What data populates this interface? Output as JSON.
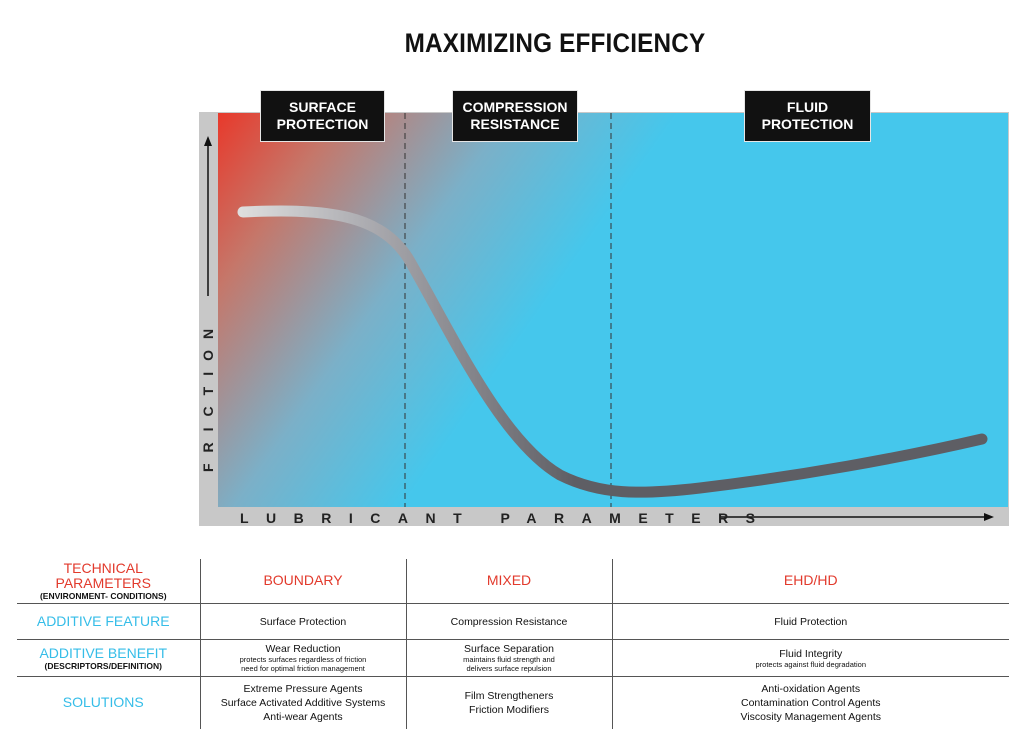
{
  "title": "MAXIMIZING EFFICIENCY",
  "regions": [
    {
      "line1": "SURFACE",
      "line2": "PROTECTION"
    },
    {
      "line1": "COMPRESSION",
      "line2": "RESISTANCE"
    },
    {
      "line1": "FLUID",
      "line2": "PROTECTION"
    }
  ],
  "axes": {
    "y_label": "FRICTION",
    "x_label": "LUBRICANT PARAMETERS"
  },
  "colors": {
    "hot": "#e8392b",
    "cool": "#45c7ec",
    "curve": "#5e5e64",
    "frame": "#c8c8c8",
    "red_text": "#e23a2c",
    "blue_text": "#35bde8"
  },
  "chart_data": {
    "type": "line",
    "regions": [
      "BOUNDARY",
      "MIXED",
      "EHD/HD"
    ],
    "curve": {
      "x": [
        0,
        0.05,
        0.1,
        0.15,
        0.2,
        0.25,
        0.3,
        0.35,
        0.4,
        0.45,
        0.5,
        0.6,
        0.7,
        0.8,
        0.9,
        1.0
      ],
      "y": [
        0.78,
        0.78,
        0.77,
        0.74,
        0.66,
        0.45,
        0.27,
        0.14,
        0.07,
        0.04,
        0.04,
        0.07,
        0.11,
        0.16,
        0.21,
        0.27
      ]
    },
    "boundaries_x": [
      0.22,
      0.48
    ]
  },
  "table": {
    "rows": [
      {
        "head": "TECHNICAL PARAMETERS",
        "sub": "(ENVIRONMENT- CONDITIONS)",
        "cells": [
          "BOUNDARY",
          "MIXED",
          "EHD/HD"
        ]
      },
      {
        "head": "ADDITIVE FEATURE",
        "cells": [
          "Surface Protection",
          "Compression Resistance",
          "Fluid Protection"
        ]
      },
      {
        "head": "ADDITIVE BENEFIT",
        "sub": "(DESCRIPTORS/DEFINITION)",
        "cells": [
          {
            "main": "Wear Reduction",
            "sub1": "protects surfaces regardless of friction",
            "sub2": "need for optimal friction management"
          },
          {
            "main": "Surface Separation",
            "sub1": "maintains fluid strength and",
            "sub2": "delivers surface repulsion"
          },
          {
            "main": "Fluid Integrity",
            "sub1": "protects against fluid degradation",
            "sub2": ""
          }
        ]
      },
      {
        "head": "SOLUTIONS",
        "cells": [
          [
            "Extreme Pressure Agents",
            "Surface Activated Additive Systems",
            "Anti-wear Agents"
          ],
          [
            "Film Strengtheners",
            "Friction Modifiers"
          ],
          [
            "Anti-oxidation Agents",
            "Contamination Control Agents",
            "Viscosity Management Agents"
          ]
        ]
      }
    ]
  }
}
